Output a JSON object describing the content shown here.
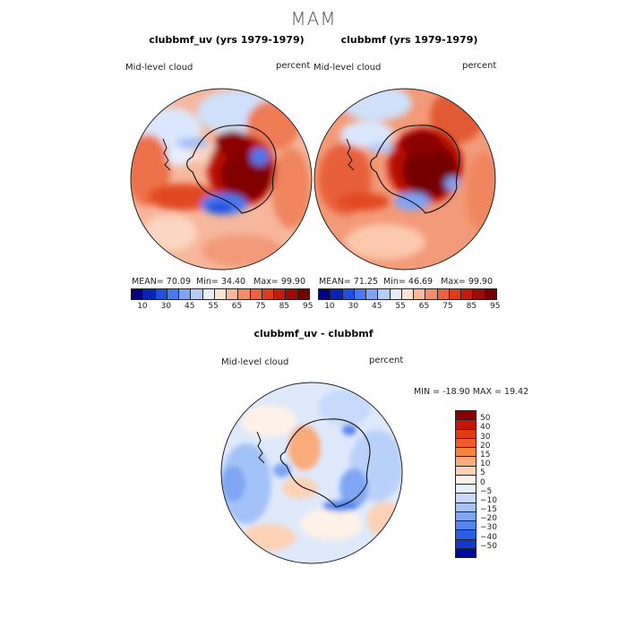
{
  "figure_title": "MAM",
  "panels": [
    {
      "title": "clubbmf_uv (yrs 1979-1979)",
      "left_label": "Mid-level cloud",
      "right_label": "percent",
      "stats": {
        "mean_label": "MEAN=",
        "mean": "70.09",
        "min_label": "Min=",
        "min": "34.40",
        "max_label": "Max=",
        "max": "99.90"
      }
    },
    {
      "title": "clubbmf (yrs 1979-1979)",
      "left_label": "Mid-level cloud",
      "right_label": "percent",
      "stats": {
        "mean_label": "MEAN=",
        "mean": "71.25",
        "min_label": "Min=",
        "min": "46.69",
        "max_label": "Max=",
        "max": "99.90"
      }
    }
  ],
  "diff_panel": {
    "title": "clubbmf_uv - clubbmf",
    "left_label": "Mid-level cloud",
    "right_label": "percent",
    "minmax_text": "MIN = -18.90 MAX =  19.42"
  },
  "colorbar_top": {
    "colors": [
      "#000080",
      "#0a23b8",
      "#1f4fe0",
      "#4a78f0",
      "#7fa3f5",
      "#b5cdfa",
      "#e6efff",
      "#fde3d4",
      "#f7b89b",
      "#f38e6a",
      "#ec6140",
      "#e03a1e",
      "#c41a0b",
      "#9e0a05",
      "#750000"
    ],
    "tick_labels": [
      "10",
      "30",
      "45",
      "55",
      "65",
      "75",
      "85",
      "95"
    ]
  },
  "colorbar_diff": {
    "colors": [
      "#8b0000",
      "#c21707",
      "#e23a10",
      "#f25a25",
      "#f7843f",
      "#f9ab7c",
      "#fcd1b5",
      "#fef1e7",
      "#e7f0fd",
      "#c7dafb",
      "#a3c2f8",
      "#7fa6f3",
      "#5385ee",
      "#2c5ee5",
      "#1237cc",
      "#000a9e"
    ],
    "tick_labels": [
      "50",
      "40",
      "30",
      "20",
      "15",
      "10",
      "5",
      "0",
      "−5",
      "−10",
      "−15",
      "−20",
      "−30",
      "−40",
      "−50"
    ]
  },
  "chart_data": {
    "type": "heatmap",
    "title": "MAM",
    "projection": "south polar stereographic",
    "variable": "Mid-level cloud",
    "units": "percent",
    "maps": [
      {
        "title": "clubbmf_uv (yrs 1979-1979)",
        "mean": 70.09,
        "min": 34.4,
        "max": 99.9,
        "contour_levels": [
          10,
          20,
          30,
          40,
          45,
          50,
          55,
          60,
          65,
          70,
          75,
          80,
          85,
          90,
          95
        ],
        "dominant": "high cloud (85-99) over East Antarctica, 65-80 over surrounding ocean, low (40-55) over Ross/Amundsen sector"
      },
      {
        "title": "clubbmf (yrs 1979-1979)",
        "mean": 71.25,
        "min": 46.69,
        "max": 99.9,
        "contour_levels": [
          10,
          20,
          30,
          40,
          45,
          50,
          55,
          60,
          65,
          70,
          75,
          80,
          85,
          90,
          95
        ],
        "dominant": "high cloud (85-99) over East Antarctica, 70-85 over mid-latitude ocean"
      },
      {
        "title": "clubbmf_uv - clubbmf",
        "min": -18.9,
        "max": 19.42,
        "contour_levels": [
          -50,
          -40,
          -30,
          -20,
          -15,
          -10,
          -5,
          0,
          5,
          10,
          15,
          20,
          30,
          40,
          50
        ],
        "dominant": "mostly -10 to 0 over oceans, negative ring along Antarctic coast, scattered +5 to +10 over continent"
      }
    ]
  }
}
